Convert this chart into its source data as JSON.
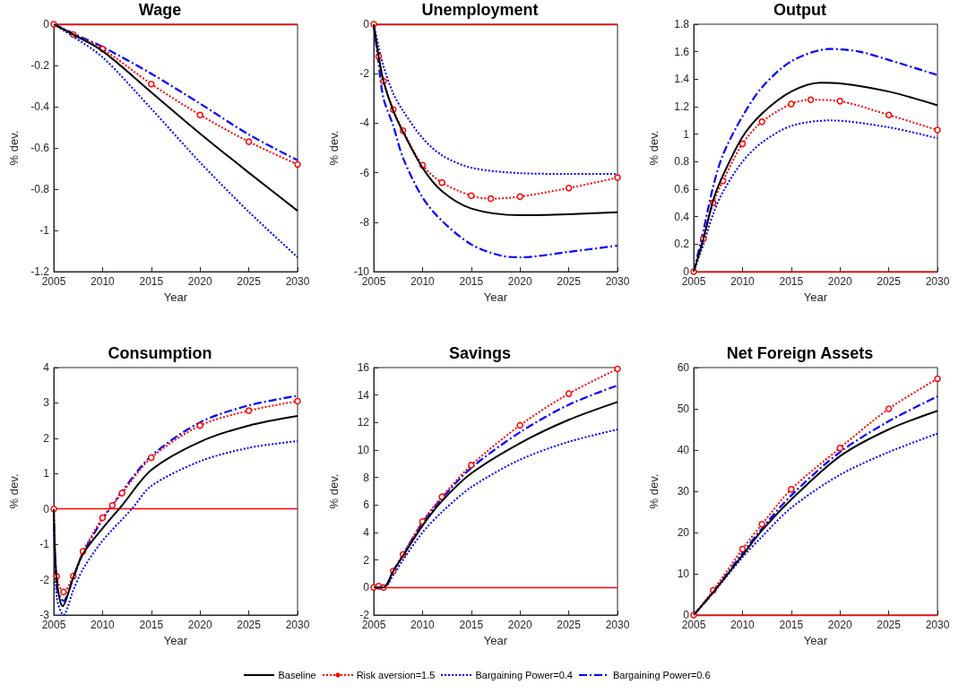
{
  "chart_data": [
    {
      "type": "line",
      "title": "Wage",
      "xlabel": "Year",
      "ylabel": "% dev.",
      "xlim": [
        2005,
        2030
      ],
      "xticks": [
        2005,
        2010,
        2015,
        2020,
        2025,
        2030
      ],
      "ylim": [
        -1.2,
        0
      ],
      "yticks": [
        -1.2,
        -1,
        -0.8,
        -0.6,
        -0.4,
        -0.2,
        0
      ],
      "grid": false,
      "legend": "bottom",
      "ref_lines": [
        {
          "axis": "y",
          "value": 0,
          "color": "#ff0000"
        }
      ],
      "series": [
        {
          "name": "Baseline",
          "color": "#000000",
          "line_style": "solid",
          "marker": "none",
          "x": [
            2005,
            2007,
            2010,
            2015,
            2020,
            2025,
            2030
          ],
          "values": [
            0,
            -0.05,
            -0.13,
            -0.33,
            -0.53,
            -0.72,
            -0.905
          ]
        },
        {
          "name": "Risk aversion=1.5",
          "color": "#ff0000",
          "line_style": "dotted",
          "marker": "circle",
          "x": [
            2005,
            2007,
            2010,
            2015,
            2020,
            2025,
            2030
          ],
          "values": [
            0,
            -0.05,
            -0.12,
            -0.29,
            -0.44,
            -0.57,
            -0.68
          ]
        },
        {
          "name": "Bargaining Power=0.4",
          "color": "#0000ff",
          "line_style": "dotted",
          "marker": "none",
          "x": [
            2005,
            2007,
            2010,
            2015,
            2020,
            2025,
            2030
          ],
          "values": [
            0,
            -0.06,
            -0.16,
            -0.41,
            -0.67,
            -0.91,
            -1.13
          ]
        },
        {
          "name": "Bargaining Power=0.6",
          "color": "#0000ff",
          "line_style": "dashed",
          "marker": "none",
          "x": [
            2005,
            2007,
            2010,
            2015,
            2020,
            2025,
            2030
          ],
          "values": [
            0,
            -0.045,
            -0.11,
            -0.24,
            -0.385,
            -0.535,
            -0.66
          ]
        }
      ]
    },
    {
      "type": "line",
      "title": "Unemployment",
      "xlabel": "Year",
      "ylabel": "% dev.",
      "xlim": [
        2005,
        2030
      ],
      "xticks": [
        2005,
        2010,
        2015,
        2020,
        2025,
        2030
      ],
      "ylim": [
        -10,
        0
      ],
      "yticks": [
        -10,
        -8,
        -6,
        -4,
        -2,
        0
      ],
      "grid": false,
      "ref_lines": [
        {
          "axis": "y",
          "value": 0,
          "color": "#ff0000"
        }
      ],
      "series": [
        {
          "color": "#000000",
          "line_style": "solid",
          "marker": "none",
          "x": [
            2005,
            2005.5,
            2006,
            2007,
            2008,
            2010,
            2012,
            2015,
            2020,
            2025,
            2030
          ],
          "values": [
            0,
            -1.3,
            -2.3,
            -3.5,
            -4.35,
            -5.8,
            -6.75,
            -7.45,
            -7.72,
            -7.68,
            -7.6
          ]
        },
        {
          "color": "#ff0000",
          "line_style": "dotted",
          "marker": "circle",
          "x": [
            2005,
            2005.5,
            2006,
            2007,
            2008,
            2010,
            2012,
            2015,
            2017,
            2020,
            2025,
            2030
          ],
          "values": [
            0,
            -1.3,
            -2.3,
            -3.45,
            -4.3,
            -5.7,
            -6.4,
            -6.93,
            -7.05,
            -6.97,
            -6.62,
            -6.2
          ]
        },
        {
          "color": "#0000ff",
          "line_style": "dotted",
          "marker": "none",
          "x": [
            2005,
            2005.5,
            2006,
            2007,
            2008,
            2010,
            2012,
            2015,
            2020,
            2025,
            2030
          ],
          "values": [
            0,
            -0.9,
            -1.7,
            -2.8,
            -3.5,
            -4.6,
            -5.3,
            -5.8,
            -6.02,
            -6.05,
            -6.05
          ]
        },
        {
          "color": "#0000ff",
          "line_style": "dashed",
          "marker": "none",
          "x": [
            2005,
            2005.5,
            2006,
            2007,
            2008,
            2010,
            2012,
            2015,
            2018,
            2020,
            2025,
            2030
          ],
          "values": [
            0,
            -1.6,
            -3.0,
            -4.1,
            -5.4,
            -7.0,
            -7.95,
            -8.9,
            -9.35,
            -9.42,
            -9.2,
            -8.95
          ]
        }
      ]
    },
    {
      "type": "line",
      "title": "Output",
      "xlabel": "Year",
      "ylabel": "% dev.",
      "xlim": [
        2005,
        2030
      ],
      "xticks": [
        2005,
        2010,
        2015,
        2020,
        2025,
        2030
      ],
      "ylim": [
        0,
        1.8
      ],
      "yticks": [
        0,
        0.2,
        0.4,
        0.6,
        0.8,
        1,
        1.2,
        1.4,
        1.6,
        1.8
      ],
      "grid": false,
      "ref_lines": [
        {
          "axis": "y",
          "value": 0,
          "color": "#ff0000"
        }
      ],
      "series": [
        {
          "color": "#000000",
          "line_style": "solid",
          "marker": "none",
          "x": [
            2005,
            2006,
            2007,
            2008,
            2010,
            2012,
            2015,
            2018,
            2020,
            2025,
            2030
          ],
          "values": [
            0,
            0.24,
            0.52,
            0.7,
            0.98,
            1.15,
            1.31,
            1.375,
            1.37,
            1.31,
            1.21
          ]
        },
        {
          "color": "#ff0000",
          "line_style": "dotted",
          "marker": "circle",
          "x": [
            2005,
            2006,
            2007,
            2008,
            2010,
            2012,
            2015,
            2017,
            2020,
            2025,
            2030
          ],
          "values": [
            0,
            0.24,
            0.5,
            0.66,
            0.93,
            1.09,
            1.22,
            1.25,
            1.24,
            1.14,
            1.03
          ]
        },
        {
          "color": "#0000ff",
          "line_style": "dotted",
          "marker": "none",
          "x": [
            2005,
            2006,
            2007,
            2008,
            2010,
            2012,
            2015,
            2019,
            2025,
            2030
          ],
          "values": [
            0,
            0.2,
            0.42,
            0.58,
            0.8,
            0.94,
            1.06,
            1.1,
            1.05,
            0.97
          ]
        },
        {
          "color": "#0000ff",
          "line_style": "dashed",
          "marker": "none",
          "x": [
            2005,
            2006,
            2007,
            2008,
            2010,
            2012,
            2015,
            2019,
            2022,
            2025,
            2030
          ],
          "values": [
            0,
            0.3,
            0.62,
            0.85,
            1.13,
            1.34,
            1.53,
            1.62,
            1.6,
            1.54,
            1.43
          ]
        }
      ]
    },
    {
      "type": "line",
      "title": "Consumption",
      "xlabel": "Year",
      "ylabel": "% dev.",
      "xlim": [
        2005,
        2030
      ],
      "xticks": [
        2005,
        2010,
        2015,
        2020,
        2025,
        2030
      ],
      "ylim": [
        -3,
        4
      ],
      "yticks": [
        -3,
        -2,
        -1,
        0,
        1,
        2,
        3,
        4
      ],
      "grid": false,
      "ref_lines": [
        {
          "axis": "y",
          "value": 0,
          "color": "#ff0000"
        }
      ],
      "series": [
        {
          "color": "#000000",
          "line_style": "solid",
          "marker": "none",
          "x": [
            2005,
            2005.3,
            2005.9,
            2007,
            2008,
            2010,
            2012,
            2015,
            2020,
            2025,
            2030
          ],
          "values": [
            0,
            -2.0,
            -2.75,
            -1.94,
            -1.27,
            -0.55,
            0.1,
            1.1,
            1.9,
            2.36,
            2.63
          ]
        },
        {
          "color": "#ff0000",
          "line_style": "dotted",
          "marker": "circle",
          "x": [
            2005,
            2005.3,
            2006,
            2007,
            2008,
            2010,
            2011,
            2012,
            2015,
            2020,
            2025,
            2030
          ],
          "values": [
            0,
            -1.9,
            -2.35,
            -1.9,
            -1.2,
            -0.25,
            0.1,
            0.45,
            1.45,
            2.36,
            2.78,
            3.05
          ]
        },
        {
          "color": "#0000ff",
          "line_style": "dotted",
          "marker": "none",
          "x": [
            2005,
            2005.3,
            2006,
            2007,
            2008,
            2010,
            2013,
            2015,
            2020,
            2025,
            2030
          ],
          "values": [
            0,
            -2.5,
            -3.0,
            -2.3,
            -1.7,
            -0.9,
            0,
            0.65,
            1.35,
            1.73,
            1.92
          ]
        },
        {
          "color": "#0000ff",
          "line_style": "dashed",
          "marker": "none",
          "x": [
            2005,
            2005.3,
            2006,
            2007,
            2008,
            2010,
            2011,
            2012,
            2015,
            2020,
            2025,
            2030
          ],
          "values": [
            0,
            -2.2,
            -2.6,
            -1.95,
            -1.25,
            -0.3,
            0.1,
            0.5,
            1.5,
            2.45,
            2.93,
            3.2
          ]
        }
      ]
    },
    {
      "type": "line",
      "title": "Savings",
      "xlabel": "Year",
      "ylabel": "% dev.",
      "xlim": [
        2005,
        2030
      ],
      "xticks": [
        2005,
        2010,
        2015,
        2020,
        2025,
        2030
      ],
      "ylim": [
        -2,
        16
      ],
      "yticks": [
        -2,
        0,
        2,
        4,
        6,
        8,
        10,
        12,
        14,
        16
      ],
      "grid": false,
      "ref_lines": [
        {
          "axis": "y",
          "value": 0,
          "color": "#ff0000"
        }
      ],
      "series": [
        {
          "color": "#000000",
          "line_style": "solid",
          "marker": "none",
          "x": [
            2005,
            2006,
            2007,
            2008,
            2010,
            2012,
            2015,
            2020,
            2025,
            2030
          ],
          "values": [
            0,
            0,
            1.2,
            2.3,
            4.5,
            6.3,
            8.3,
            10.5,
            12.2,
            13.5
          ]
        },
        {
          "color": "#ff0000",
          "line_style": "dotted",
          "marker": "circle",
          "x": [
            2005,
            2005.5,
            2006,
            2007,
            2008,
            2010,
            2012,
            2015,
            2020,
            2025,
            2030
          ],
          "values": [
            0,
            0.1,
            0,
            1.2,
            2.4,
            4.8,
            6.6,
            8.9,
            11.8,
            14.1,
            15.9
          ]
        },
        {
          "color": "#0000ff",
          "line_style": "dotted",
          "marker": "none",
          "x": [
            2005,
            2006,
            2007,
            2008,
            2010,
            2012,
            2015,
            2020,
            2025,
            2030
          ],
          "values": [
            0,
            0,
            0.9,
            2.0,
            4.0,
            5.5,
            7.3,
            9.3,
            10.6,
            11.5
          ]
        },
        {
          "color": "#0000ff",
          "line_style": "dashed",
          "marker": "none",
          "x": [
            2005,
            2006,
            2007,
            2008,
            2010,
            2012,
            2015,
            2020,
            2025,
            2030
          ],
          "values": [
            0,
            -0.1,
            1.2,
            2.4,
            4.7,
            6.5,
            8.7,
            11.3,
            13.3,
            14.7
          ]
        }
      ]
    },
    {
      "type": "line",
      "title": "Net Foreign Assets",
      "xlabel": "Year",
      "ylabel": "% dev.",
      "xlim": [
        2005,
        2030
      ],
      "xticks": [
        2005,
        2010,
        2015,
        2020,
        2025,
        2030
      ],
      "ylim": [
        0,
        60
      ],
      "yticks": [
        0,
        10,
        20,
        30,
        40,
        50,
        60
      ],
      "grid": false,
      "ref_lines": [
        {
          "axis": "y",
          "value": 0,
          "color": "#ff0000"
        }
      ],
      "series": [
        {
          "color": "#000000",
          "line_style": "solid",
          "marker": "none",
          "x": [
            2005,
            2007,
            2010,
            2012,
            2015,
            2020,
            2025,
            2030
          ],
          "values": [
            0,
            5.5,
            14.5,
            20.5,
            28,
            38.5,
            45,
            49.5
          ]
        },
        {
          "color": "#ff0000",
          "line_style": "dotted",
          "marker": "circle",
          "x": [
            2005,
            2007,
            2010,
            2012,
            2015,
            2020,
            2025,
            2030
          ],
          "values": [
            0,
            6,
            16,
            22,
            30.5,
            40.5,
            50,
            57.3
          ]
        },
        {
          "color": "#0000ff",
          "line_style": "dotted",
          "marker": "none",
          "x": [
            2005,
            2007,
            2010,
            2012,
            2015,
            2020,
            2025,
            2030
          ],
          "values": [
            0,
            5.4,
            14,
            19,
            26,
            34,
            39.5,
            44
          ]
        },
        {
          "color": "#0000ff",
          "line_style": "dashed",
          "marker": "none",
          "x": [
            2005,
            2007,
            2010,
            2012,
            2015,
            2020,
            2025,
            2030
          ],
          "values": [
            0,
            5.5,
            15,
            21,
            29,
            39.5,
            47,
            53
          ]
        }
      ]
    }
  ]
}
